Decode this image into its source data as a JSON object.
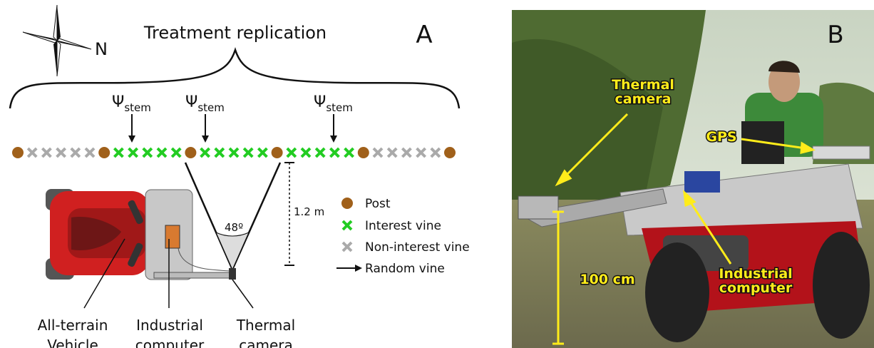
{
  "panel_a": {
    "label": "A",
    "title": "Treatment replication",
    "compass": "N",
    "psi_labels": [
      {
        "symbol": "Ψ",
        "subscript": "stem"
      },
      {
        "symbol": "Ψ",
        "subscript": "stem"
      },
      {
        "symbol": "Ψ",
        "subscript": "stem"
      }
    ],
    "angle": "48º",
    "distance": "1.2 m",
    "legend": [
      {
        "label": "Post"
      },
      {
        "label": "Interest vine"
      },
      {
        "label": "Non-interest vine"
      },
      {
        "label": "Random vine"
      }
    ],
    "components": [
      {
        "lines": [
          "All-terrain",
          "Vehicle"
        ]
      },
      {
        "lines": [
          "Industrial",
          "computer"
        ]
      },
      {
        "lines": [
          "Thermal",
          "camera"
        ]
      }
    ]
  },
  "panel_b": {
    "label": "B",
    "annotations": [
      {
        "lines": [
          "Thermal",
          "camera"
        ]
      },
      {
        "lines": [
          "GPS"
        ]
      },
      {
        "lines": [
          "100 cm"
        ]
      },
      {
        "lines": [
          "Industrial",
          "computer"
        ]
      }
    ]
  }
}
